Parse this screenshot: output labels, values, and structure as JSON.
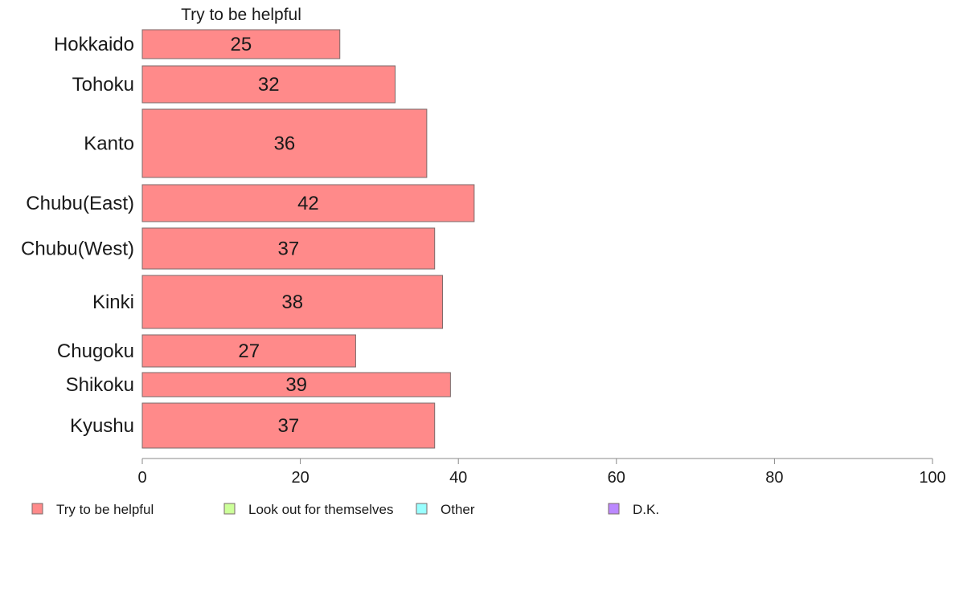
{
  "chart_data": {
    "type": "bar",
    "orientation": "horizontal",
    "title": "",
    "series_title": "Try to be helpful",
    "categories": [
      "Hokkaido",
      "Tohoku",
      "Kanto",
      "Chubu(East)",
      "Chubu(West)",
      "Kinki",
      "Chugoku",
      "Shikoku",
      "Kyushu"
    ],
    "series": [
      {
        "name": "Try to be helpful",
        "color": "#ff8a8a",
        "values": [
          25,
          32,
          36,
          42,
          37,
          38,
          27,
          39,
          37
        ]
      }
    ],
    "xlim": [
      0,
      100
    ],
    "xticks": [
      0,
      20,
      40,
      60,
      80,
      100
    ],
    "xlabel": "",
    "ylabel": "",
    "grid": false,
    "legend": {
      "placement": "bottom",
      "entries": [
        {
          "label": "Try to be helpful",
          "color": "#ff8a8a"
        },
        {
          "label": "Look out for themselves",
          "color": "#ccff99"
        },
        {
          "label": "Other",
          "color": "#99ffff"
        },
        {
          "label": "D.K.",
          "color": "#bb88ff"
        }
      ]
    }
  }
}
